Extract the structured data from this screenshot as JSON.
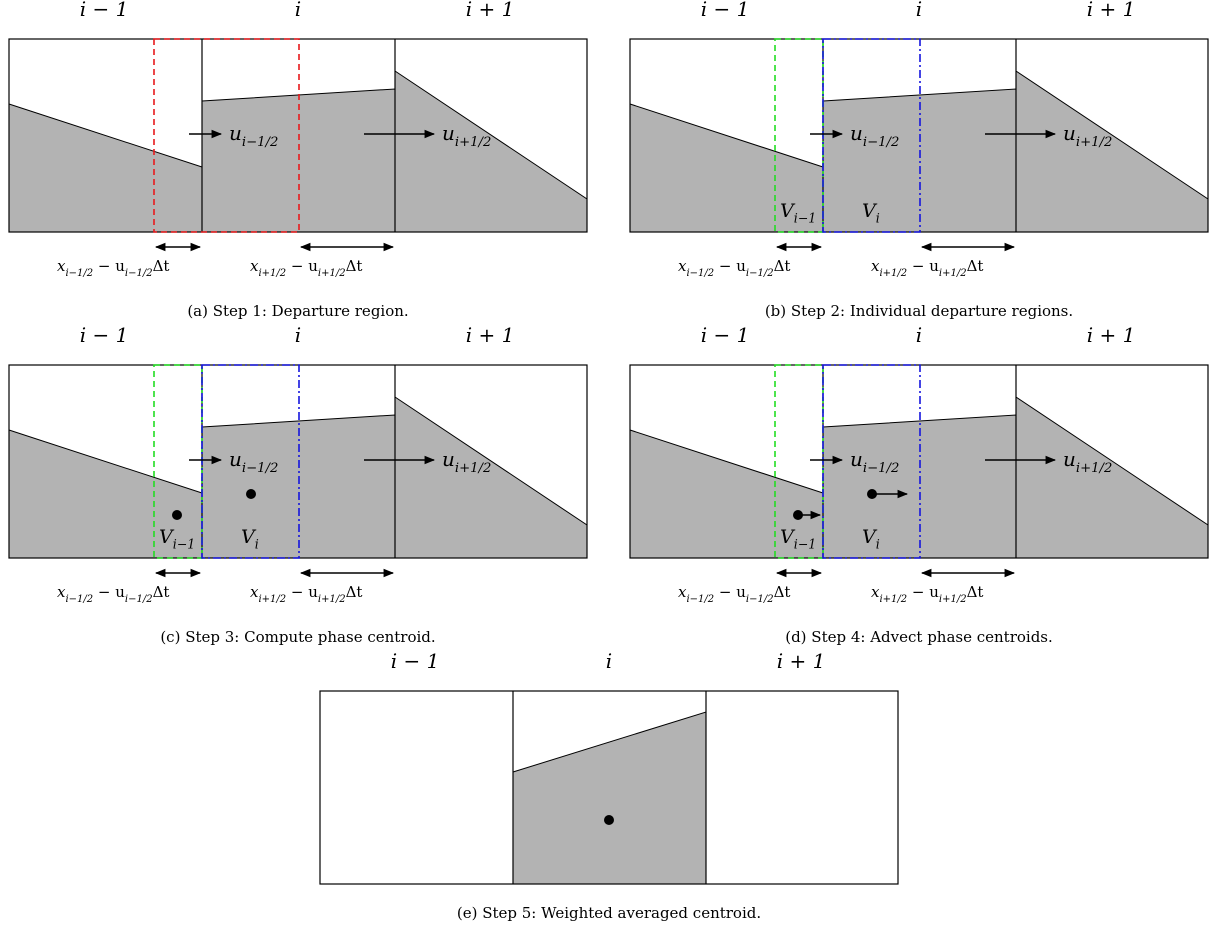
{
  "colors": {
    "fill": "#b3b3b3",
    "red_region": "#e8191c",
    "green_region": "#22dd22",
    "blue_region": "#1515dd"
  },
  "cells": [
    "i − 1",
    "i",
    "i + 1"
  ],
  "labels": {
    "vel_left_base": "u",
    "vel_left_sub": "i−1/2",
    "vel_right_base": "u",
    "vel_right_sub": "i+1/2",
    "vol_left_base": "V",
    "vol_left_sub": "i−1",
    "vol_mid_base": "V",
    "vol_mid_sub": "i",
    "dim_left_a": "x",
    "dim_left_a_sub": "i−1/2",
    "dim_left_mid": " − u",
    "dim_left_b_sub": "i−1/2",
    "dim_left_end": "Δt",
    "dim_right_a": "x",
    "dim_right_a_sub": "i+1/2",
    "dim_right_mid": " − u",
    "dim_right_b_sub": "i+1/2",
    "dim_right_end": "Δt"
  },
  "panels": [
    {
      "id": "a",
      "caption": "(a) Step 1: Departure region."
    },
    {
      "id": "b",
      "caption": "(b) Step 2: Individual departure regions."
    },
    {
      "id": "c",
      "caption": "(c) Step 3: Compute phase centroid."
    },
    {
      "id": "d",
      "caption": "(d) Step 4: Advect phase centroids."
    },
    {
      "id": "e",
      "caption": "(e) Step 5: Weighted averaged centroid."
    }
  ]
}
